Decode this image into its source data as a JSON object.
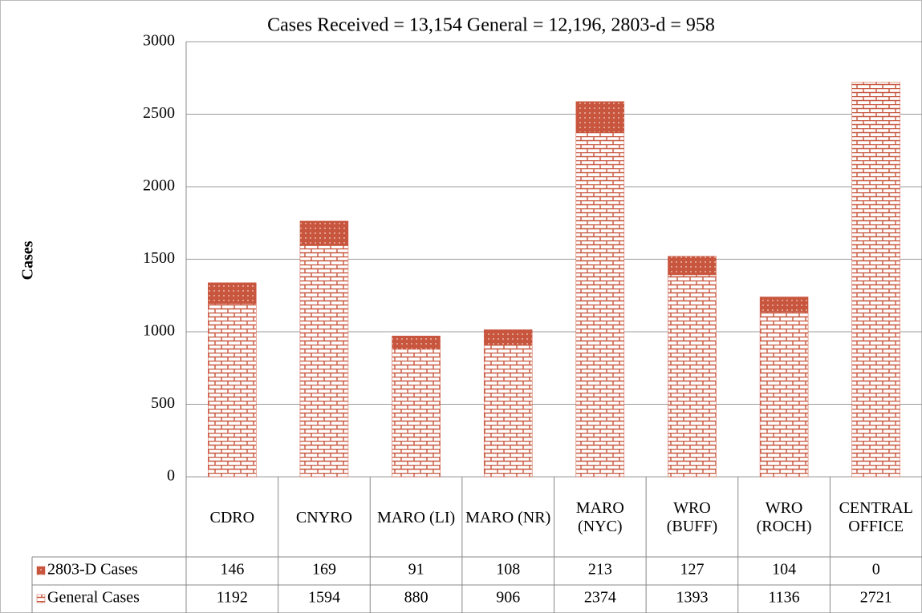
{
  "chart_data": {
    "type": "bar",
    "stacked": true,
    "title": "Cases Received = 13,154  General = 12,196,  2803-d = 958",
    "y_label": "Cases",
    "categories": [
      "CDRO",
      "CNYRO",
      "MARO (LI)",
      "MARO (NR)",
      "MARO (NYC)",
      "WRO (BUFF)",
      "WRO (ROCH)",
      "CENTRAL OFFICE"
    ],
    "series": [
      {
        "name": "General Cases",
        "color": "#c8553d",
        "values": [
          1192,
          1594,
          880,
          906,
          2374,
          1393,
          1136,
          2721
        ]
      },
      {
        "name": "2803-D Cases",
        "color": "#c8553d",
        "values": [
          146,
          169,
          91,
          108,
          213,
          127,
          104,
          0
        ]
      }
    ],
    "ylim": [
      0,
      3000
    ],
    "yticks": [
      0,
      500,
      1000,
      1500,
      2000,
      2500,
      3000
    ],
    "grid": true
  }
}
